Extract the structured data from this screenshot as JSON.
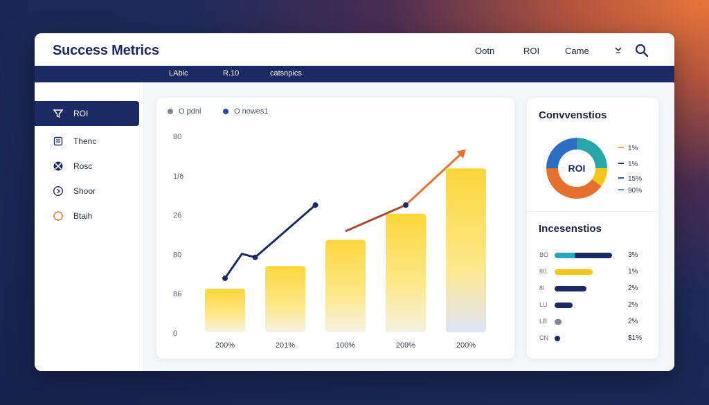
{
  "app_title": "Success Metrics",
  "top_nav": [
    "Ootn",
    "ROI",
    "Came"
  ],
  "strip": [
    "LAbic",
    "R.10",
    "catsnpics"
  ],
  "sidebar": {
    "items": [
      {
        "label": "ROI",
        "icon": "funnel-icon",
        "active": true
      },
      {
        "label": "Thenc",
        "icon": "document-icon",
        "active": false
      },
      {
        "label": "Rosc",
        "icon": "target-icon",
        "active": false
      },
      {
        "label": "Shoor",
        "icon": "circle-arrow-icon",
        "active": false
      },
      {
        "label": "Btaih",
        "icon": "badge-icon",
        "active": false
      }
    ]
  },
  "legend": [
    {
      "label": "O pdnl",
      "color": "#7d8496"
    },
    {
      "label": "O nowes1",
      "color": "#1e4f9a"
    }
  ],
  "colors": {
    "navy": "#1c2a63",
    "bar_yellow": "#fcd63a",
    "line_navy": "#1c2a63",
    "line_orange": "#e8702e"
  },
  "chart_data": {
    "type": "bar",
    "categories": [
      "200%",
      "201%",
      "100%",
      "209%",
      "200%"
    ],
    "y_tick_labels": [
      "80",
      "1/6",
      "26",
      "80",
      "86",
      "0"
    ],
    "values": [
      0.25,
      0.38,
      0.53,
      0.68,
      0.94
    ],
    "line": {
      "navy_points": [
        [
          0.0,
          0.31
        ],
        [
          0.28,
          0.45
        ],
        [
          0.5,
          0.43
        ],
        [
          1.0,
          0.58
        ],
        [
          1.5,
          0.73
        ]
      ],
      "orange_points": [
        [
          2.0,
          0.58
        ],
        [
          3.0,
          0.73
        ],
        [
          4.0,
          1.05
        ]
      ]
    },
    "ylim": [
      0,
      1.1
    ]
  },
  "right": {
    "conversions_title": "Convvenstios",
    "donut_label": "ROI",
    "donut_legend": [
      {
        "label": "1%",
        "color": "#f5a623"
      },
      {
        "label": "1%",
        "color": "#1c2a63"
      },
      {
        "label": "15%",
        "color": "#2b5aa8"
      },
      {
        "label": "90%",
        "color": "#27a7a8"
      }
    ],
    "donut_slices": [
      {
        "value": 25,
        "color": "#27a7a8"
      },
      {
        "value": 10,
        "color": "#f5c518"
      },
      {
        "value": 40,
        "color": "#e8702e"
      },
      {
        "value": 25,
        "color": "#2b6fc4"
      }
    ],
    "increases_title": "Incesenstios",
    "bars": [
      {
        "label": "BO",
        "value": 0.83,
        "color": "#27a7c0",
        "tail": "#1c2a63",
        "pct": "3%"
      },
      {
        "label": "80",
        "value": 0.55,
        "color": "#f5c518",
        "pct": "1%"
      },
      {
        "label": "8l",
        "value": 0.46,
        "color": "#1c2a63",
        "pct": "2%"
      },
      {
        "label": "LU",
        "value": 0.26,
        "color": "#1c2a63",
        "pct": "2%"
      },
      {
        "label": "LB",
        "value": 0.1,
        "color": "#7d8496",
        "pct": "2%"
      },
      {
        "label": "CN",
        "value": 0.08,
        "color": "#1c2a63",
        "pct": "$1%"
      }
    ]
  }
}
